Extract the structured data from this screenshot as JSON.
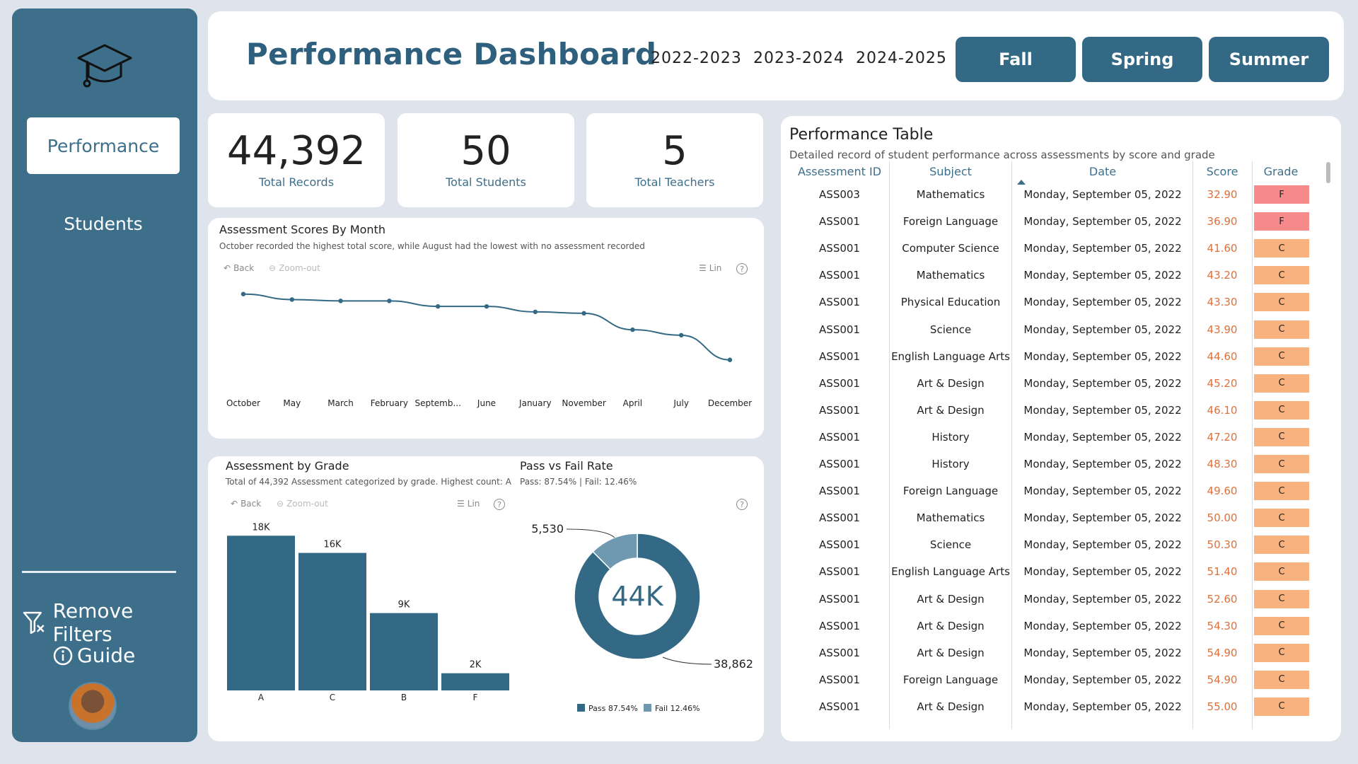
{
  "sidebar": {
    "nav": [
      "Performance",
      "Students"
    ],
    "remove_filters": "Remove Filters",
    "guide": "Guide"
  },
  "header": {
    "title": "Performance Dashboard",
    "years": [
      "2022-2023",
      "2023-2024",
      "2024-2025"
    ],
    "seasons": [
      "Fall",
      "Spring",
      "Summer"
    ]
  },
  "kpis": [
    {
      "value": "44,392",
      "label": "Total Records"
    },
    {
      "value": "50",
      "label": "Total Students"
    },
    {
      "value": "5",
      "label": "Total Teachers"
    }
  ],
  "toolbar": {
    "back": "Back",
    "zoom_out": "Zoom-out",
    "lin": "Lin",
    "help": "?"
  },
  "colors": {
    "primary": "#336985",
    "accent_light": "#6e99b1",
    "fail_grade": "#f78a8a",
    "c_grade": "#f8b27f",
    "score_text": "#e0703a"
  },
  "line_chart": {
    "title": "Assessment Scores By Month",
    "subtitle": "October recorded the highest total score, while August had the lowest with no assessment recorded"
  },
  "bar_chart": {
    "title": "Assessment by Grade",
    "subtitle": "Total of 44,392 Assessment categorized by grade. Highest count: A"
  },
  "donut_chart": {
    "title": "Pass vs Fail Rate",
    "subtitle": "Pass: 87.54% | Fail: 12.46%",
    "center_label": "44K",
    "legend": [
      "Pass 87.54%",
      "Fail 12.46%"
    ]
  },
  "chart_data": [
    {
      "type": "line",
      "title": "Assessment Scores By Month",
      "categories": [
        "October",
        "May",
        "March",
        "February",
        "Septemb...",
        "June",
        "January",
        "November",
        "April",
        "July",
        "December"
      ],
      "values": [
        100,
        96,
        95,
        95,
        91,
        91,
        87,
        86,
        74,
        70,
        52
      ],
      "ylim": [
        40,
        105
      ],
      "grid": false
    },
    {
      "type": "bar",
      "title": "Assessment by Grade",
      "categories": [
        "A",
        "C",
        "B",
        "F"
      ],
      "values": [
        18000,
        16000,
        9000,
        2000
      ],
      "data_labels": [
        "18K",
        "16K",
        "9K",
        "2K"
      ],
      "ylim": [
        0,
        20000
      ]
    },
    {
      "type": "pie",
      "title": "Pass vs Fail Rate",
      "categories": [
        "Pass",
        "Fail"
      ],
      "values": [
        38862,
        5530
      ],
      "data_labels": [
        "38,862",
        "5,530"
      ],
      "center_label": "44K"
    }
  ],
  "table": {
    "title": "Performance Table",
    "subtitle": "Detailed record of student performance across assessments by score and grade",
    "columns": [
      "Assessment ID",
      "Subject",
      "Date",
      "Score",
      "Grade"
    ],
    "rows": [
      {
        "id": "ASS003",
        "subject": "Mathematics",
        "date": "Monday, September 05, 2022",
        "score": "32.90",
        "grade": "F"
      },
      {
        "id": "ASS001",
        "subject": "Foreign Language",
        "date": "Monday, September 05, 2022",
        "score": "36.90",
        "grade": "F"
      },
      {
        "id": "ASS001",
        "subject": "Computer Science",
        "date": "Monday, September 05, 2022",
        "score": "41.60",
        "grade": "C"
      },
      {
        "id": "ASS001",
        "subject": "Mathematics",
        "date": "Monday, September 05, 2022",
        "score": "43.20",
        "grade": "C"
      },
      {
        "id": "ASS001",
        "subject": "Physical Education",
        "date": "Monday, September 05, 2022",
        "score": "43.30",
        "grade": "C"
      },
      {
        "id": "ASS001",
        "subject": "Science",
        "date": "Monday, September 05, 2022",
        "score": "43.90",
        "grade": "C"
      },
      {
        "id": "ASS001",
        "subject": "English Language Arts",
        "date": "Monday, September 05, 2022",
        "score": "44.60",
        "grade": "C"
      },
      {
        "id": "ASS001",
        "subject": "Art & Design",
        "date": "Monday, September 05, 2022",
        "score": "45.20",
        "grade": "C"
      },
      {
        "id": "ASS001",
        "subject": "Art & Design",
        "date": "Monday, September 05, 2022",
        "score": "46.10",
        "grade": "C"
      },
      {
        "id": "ASS001",
        "subject": "History",
        "date": "Monday, September 05, 2022",
        "score": "47.20",
        "grade": "C"
      },
      {
        "id": "ASS001",
        "subject": "History",
        "date": "Monday, September 05, 2022",
        "score": "48.30",
        "grade": "C"
      },
      {
        "id": "ASS001",
        "subject": "Foreign Language",
        "date": "Monday, September 05, 2022",
        "score": "49.60",
        "grade": "C"
      },
      {
        "id": "ASS001",
        "subject": "Mathematics",
        "date": "Monday, September 05, 2022",
        "score": "50.00",
        "grade": "C"
      },
      {
        "id": "ASS001",
        "subject": "Science",
        "date": "Monday, September 05, 2022",
        "score": "50.30",
        "grade": "C"
      },
      {
        "id": "ASS001",
        "subject": "English Language Arts",
        "date": "Monday, September 05, 2022",
        "score": "51.40",
        "grade": "C"
      },
      {
        "id": "ASS001",
        "subject": "Art & Design",
        "date": "Monday, September 05, 2022",
        "score": "52.60",
        "grade": "C"
      },
      {
        "id": "ASS001",
        "subject": "Art & Design",
        "date": "Monday, September 05, 2022",
        "score": "54.30",
        "grade": "C"
      },
      {
        "id": "ASS001",
        "subject": "Art & Design",
        "date": "Monday, September 05, 2022",
        "score": "54.90",
        "grade": "C"
      },
      {
        "id": "ASS001",
        "subject": "Foreign Language",
        "date": "Monday, September 05, 2022",
        "score": "54.90",
        "grade": "C"
      },
      {
        "id": "ASS001",
        "subject": "Art & Design",
        "date": "Monday, September 05, 2022",
        "score": "55.00",
        "grade": "C"
      }
    ]
  }
}
